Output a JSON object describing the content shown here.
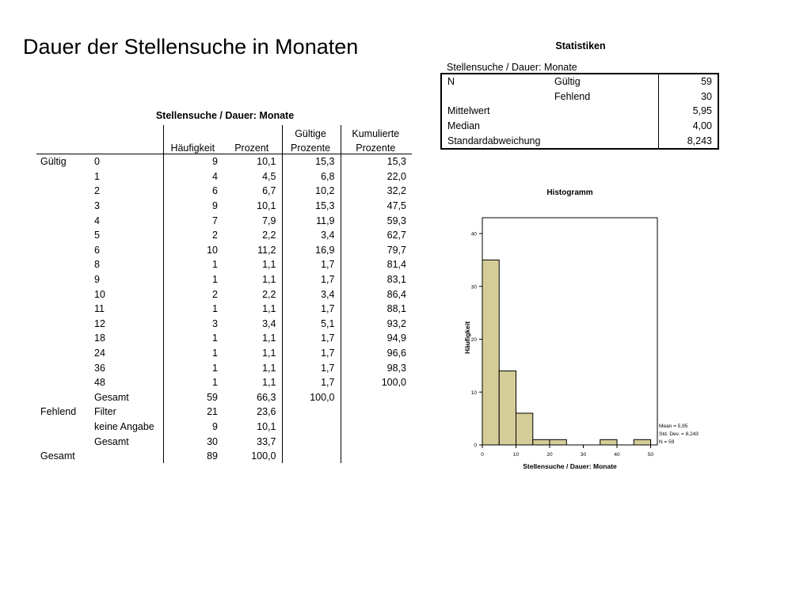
{
  "page": {
    "title": "Dauer der Stellensuche in Monaten"
  },
  "stats": {
    "title": "Statistiken",
    "variable": "Stellensuche / Dauer: Monate",
    "rows": [
      {
        "c0": "N",
        "c1": "Gültig",
        "value": "59"
      },
      {
        "c0": "",
        "c1": "Fehlend",
        "value": "30"
      },
      {
        "c0": "Mittelwert",
        "c1": "",
        "value": "5,95"
      },
      {
        "c0": "Median",
        "c1": "",
        "value": "4,00"
      },
      {
        "c0": "Standardabweichung",
        "c1": "",
        "value": "8,243"
      }
    ]
  },
  "freq": {
    "title": "Stellensuche / Dauer: Monate",
    "headers": {
      "count": "Häufigkeit",
      "percent": "Prozent",
      "valid_top": "Gültige",
      "valid_bottom": "Prozente",
      "cum_top": "Kumulierte",
      "cum_bottom": "Prozente"
    },
    "rows": [
      {
        "g": "Gültig",
        "v": "0",
        "n": "9",
        "p": "10,1",
        "vp": "15,3",
        "cp": "15,3"
      },
      {
        "g": "",
        "v": "1",
        "n": "4",
        "p": "4,5",
        "vp": "6,8",
        "cp": "22,0"
      },
      {
        "g": "",
        "v": "2",
        "n": "6",
        "p": "6,7",
        "vp": "10,2",
        "cp": "32,2"
      },
      {
        "g": "",
        "v": "3",
        "n": "9",
        "p": "10,1",
        "vp": "15,3",
        "cp": "47,5"
      },
      {
        "g": "",
        "v": "4",
        "n": "7",
        "p": "7,9",
        "vp": "11,9",
        "cp": "59,3"
      },
      {
        "g": "",
        "v": "5",
        "n": "2",
        "p": "2,2",
        "vp": "3,4",
        "cp": "62,7"
      },
      {
        "g": "",
        "v": "6",
        "n": "10",
        "p": "11,2",
        "vp": "16,9",
        "cp": "79,7"
      },
      {
        "g": "",
        "v": "8",
        "n": "1",
        "p": "1,1",
        "vp": "1,7",
        "cp": "81,4"
      },
      {
        "g": "",
        "v": "9",
        "n": "1",
        "p": "1,1",
        "vp": "1,7",
        "cp": "83,1"
      },
      {
        "g": "",
        "v": "10",
        "n": "2",
        "p": "2,2",
        "vp": "3,4",
        "cp": "86,4"
      },
      {
        "g": "",
        "v": "11",
        "n": "1",
        "p": "1,1",
        "vp": "1,7",
        "cp": "88,1"
      },
      {
        "g": "",
        "v": "12",
        "n": "3",
        "p": "3,4",
        "vp": "5,1",
        "cp": "93,2"
      },
      {
        "g": "",
        "v": "18",
        "n": "1",
        "p": "1,1",
        "vp": "1,7",
        "cp": "94,9"
      },
      {
        "g": "",
        "v": "24",
        "n": "1",
        "p": "1,1",
        "vp": "1,7",
        "cp": "96,6"
      },
      {
        "g": "",
        "v": "36",
        "n": "1",
        "p": "1,1",
        "vp": "1,7",
        "cp": "98,3"
      },
      {
        "g": "",
        "v": "48",
        "n": "1",
        "p": "1,1",
        "vp": "1,7",
        "cp": "100,0"
      },
      {
        "g": "",
        "v": "Gesamt",
        "n": "59",
        "p": "66,3",
        "vp": "100,0",
        "cp": ""
      },
      {
        "g": "Fehlend",
        "v": "Filter",
        "n": "21",
        "p": "23,6",
        "vp": "",
        "cp": ""
      },
      {
        "g": "",
        "v": "keine Angabe",
        "n": "9",
        "p": "10,1",
        "vp": "",
        "cp": ""
      },
      {
        "g": "",
        "v": "Gesamt",
        "n": "30",
        "p": "33,7",
        "vp": "",
        "cp": ""
      },
      {
        "g": "Gesamt",
        "v": "",
        "n": "89",
        "p": "100,0",
        "vp": "",
        "cp": ""
      }
    ]
  },
  "chart_data": {
    "type": "bar",
    "title": "Histogramm",
    "xlabel": "Stellensuche / Dauer: Monate",
    "ylabel": "Häufigkeit",
    "bin_edges": [
      0,
      5,
      10,
      15,
      20,
      25,
      30,
      35,
      40,
      45,
      50
    ],
    "values": [
      35,
      14,
      6,
      1,
      1,
      0,
      0,
      1,
      0,
      1
    ],
    "xlim": [
      0,
      52
    ],
    "ylim": [
      0,
      43
    ],
    "xticks": [
      "0",
      "10",
      "20",
      "30",
      "40",
      "50"
    ],
    "yticks": [
      "0",
      "10",
      "20",
      "30",
      "40"
    ],
    "stats_box": [
      "Mean = 5,95",
      "Std. Dev. = 8,243",
      "N = 59"
    ],
    "bar_color": "#d5cd98",
    "grid": false
  }
}
